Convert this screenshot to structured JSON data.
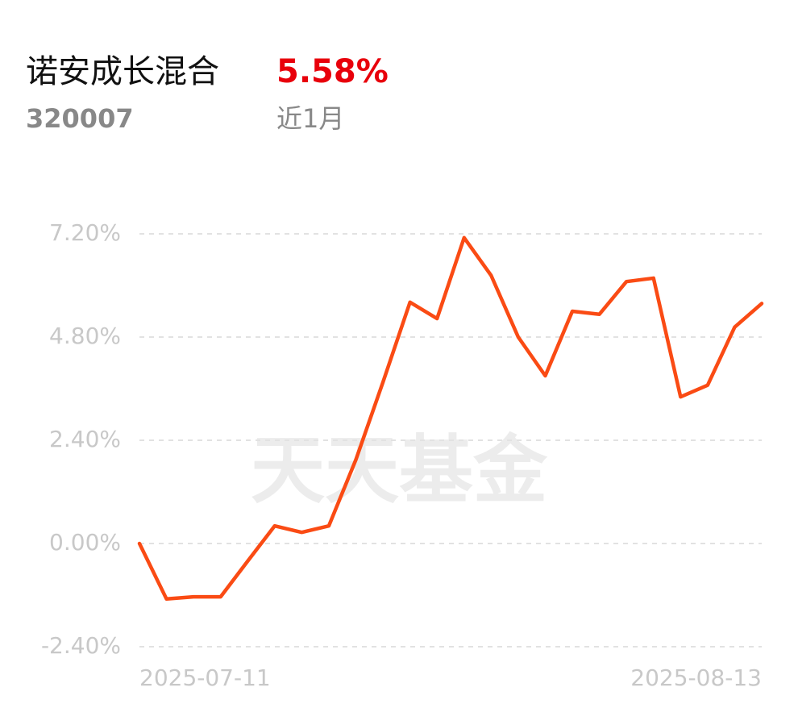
{
  "header": {
    "name": "诺安成长混合",
    "change": "5.58%",
    "code": "320007",
    "period": "近1月"
  },
  "chart_data": {
    "type": "line",
    "watermark": "天天基金",
    "categories": [
      "2025-07-11",
      null,
      null,
      null,
      null,
      null,
      null,
      null,
      null,
      null,
      null,
      null,
      null,
      null,
      null,
      null,
      null,
      null,
      null,
      null,
      null,
      null,
      null,
      "2025-08-13"
    ],
    "values": [
      0.0,
      -1.29,
      -1.24,
      -1.24,
      -0.41,
      0.41,
      0.26,
      0.41,
      1.95,
      3.75,
      5.61,
      5.23,
      7.11,
      6.23,
      4.8,
      3.9,
      5.4,
      5.33,
      6.09,
      6.17,
      3.41,
      3.68,
      5.03,
      5.58
    ],
    "color": "#fa4b14",
    "ylim": [
      -2.4,
      7.2
    ],
    "yticks": [
      {
        "value": -2.4,
        "label": "-2.40%"
      },
      {
        "value": 0,
        "label": "0.00%"
      },
      {
        "value": 2.4,
        "label": "2.40%"
      },
      {
        "value": 4.8,
        "label": "4.80%"
      },
      {
        "value": 7.2,
        "label": "7.20%"
      }
    ],
    "grid": true
  }
}
